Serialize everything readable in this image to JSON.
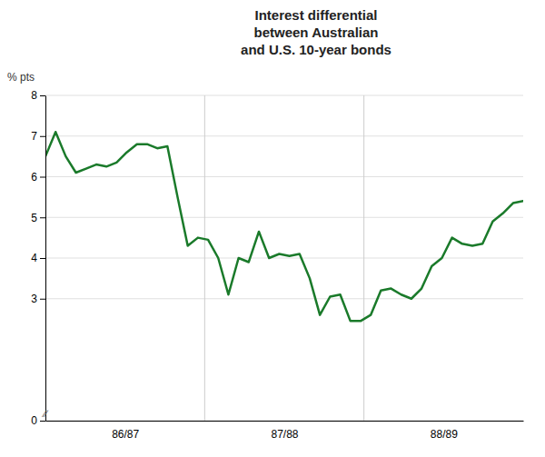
{
  "chart_data": {
    "type": "line",
    "title": "Interest differential\nbetween Australian\nand U.S. 10-year bonds",
    "ylabel": "% pts",
    "color": "#1a7a2a",
    "x": [
      0,
      1,
      2,
      3,
      4,
      5,
      6,
      7,
      8,
      9,
      10,
      11,
      12,
      13,
      14,
      15,
      16,
      17,
      18,
      19,
      20,
      21,
      22,
      23,
      24,
      25,
      26,
      27,
      28,
      29,
      30,
      31,
      32,
      33,
      34,
      35,
      36,
      37,
      38,
      39,
      40,
      41,
      42,
      43,
      44,
      45,
      46,
      47
    ],
    "values": [
      6.5,
      7.1,
      6.5,
      6.1,
      6.2,
      6.3,
      6.25,
      6.35,
      6.6,
      6.8,
      6.8,
      6.7,
      6.75,
      5.5,
      4.3,
      4.5,
      4.45,
      4.0,
      3.1,
      4.0,
      3.9,
      4.65,
      4.0,
      4.1,
      4.05,
      4.1,
      3.5,
      2.6,
      3.05,
      3.1,
      2.45,
      2.45,
      2.6,
      3.2,
      3.25,
      3.1,
      3.0,
      3.25,
      3.8,
      4.0,
      4.5,
      4.35,
      4.3,
      4.35,
      4.9,
      5.1,
      5.35,
      5.4
    ],
    "xlim": [
      0,
      47
    ],
    "xticks": [
      {
        "value": 7.833333333333333,
        "label": "86/87"
      },
      {
        "value": 23.5,
        "label": "87/88"
      },
      {
        "value": 39.166666666666664,
        "label": "88/89"
      }
    ],
    "x_dividers": [
      15.666666666666666,
      31.333333333333332
    ],
    "ylim": [
      0,
      8
    ],
    "yticks": [
      0,
      3,
      4,
      5,
      6,
      7,
      8
    ],
    "grid": true,
    "annotations": [
      "∕∕"
    ]
  }
}
